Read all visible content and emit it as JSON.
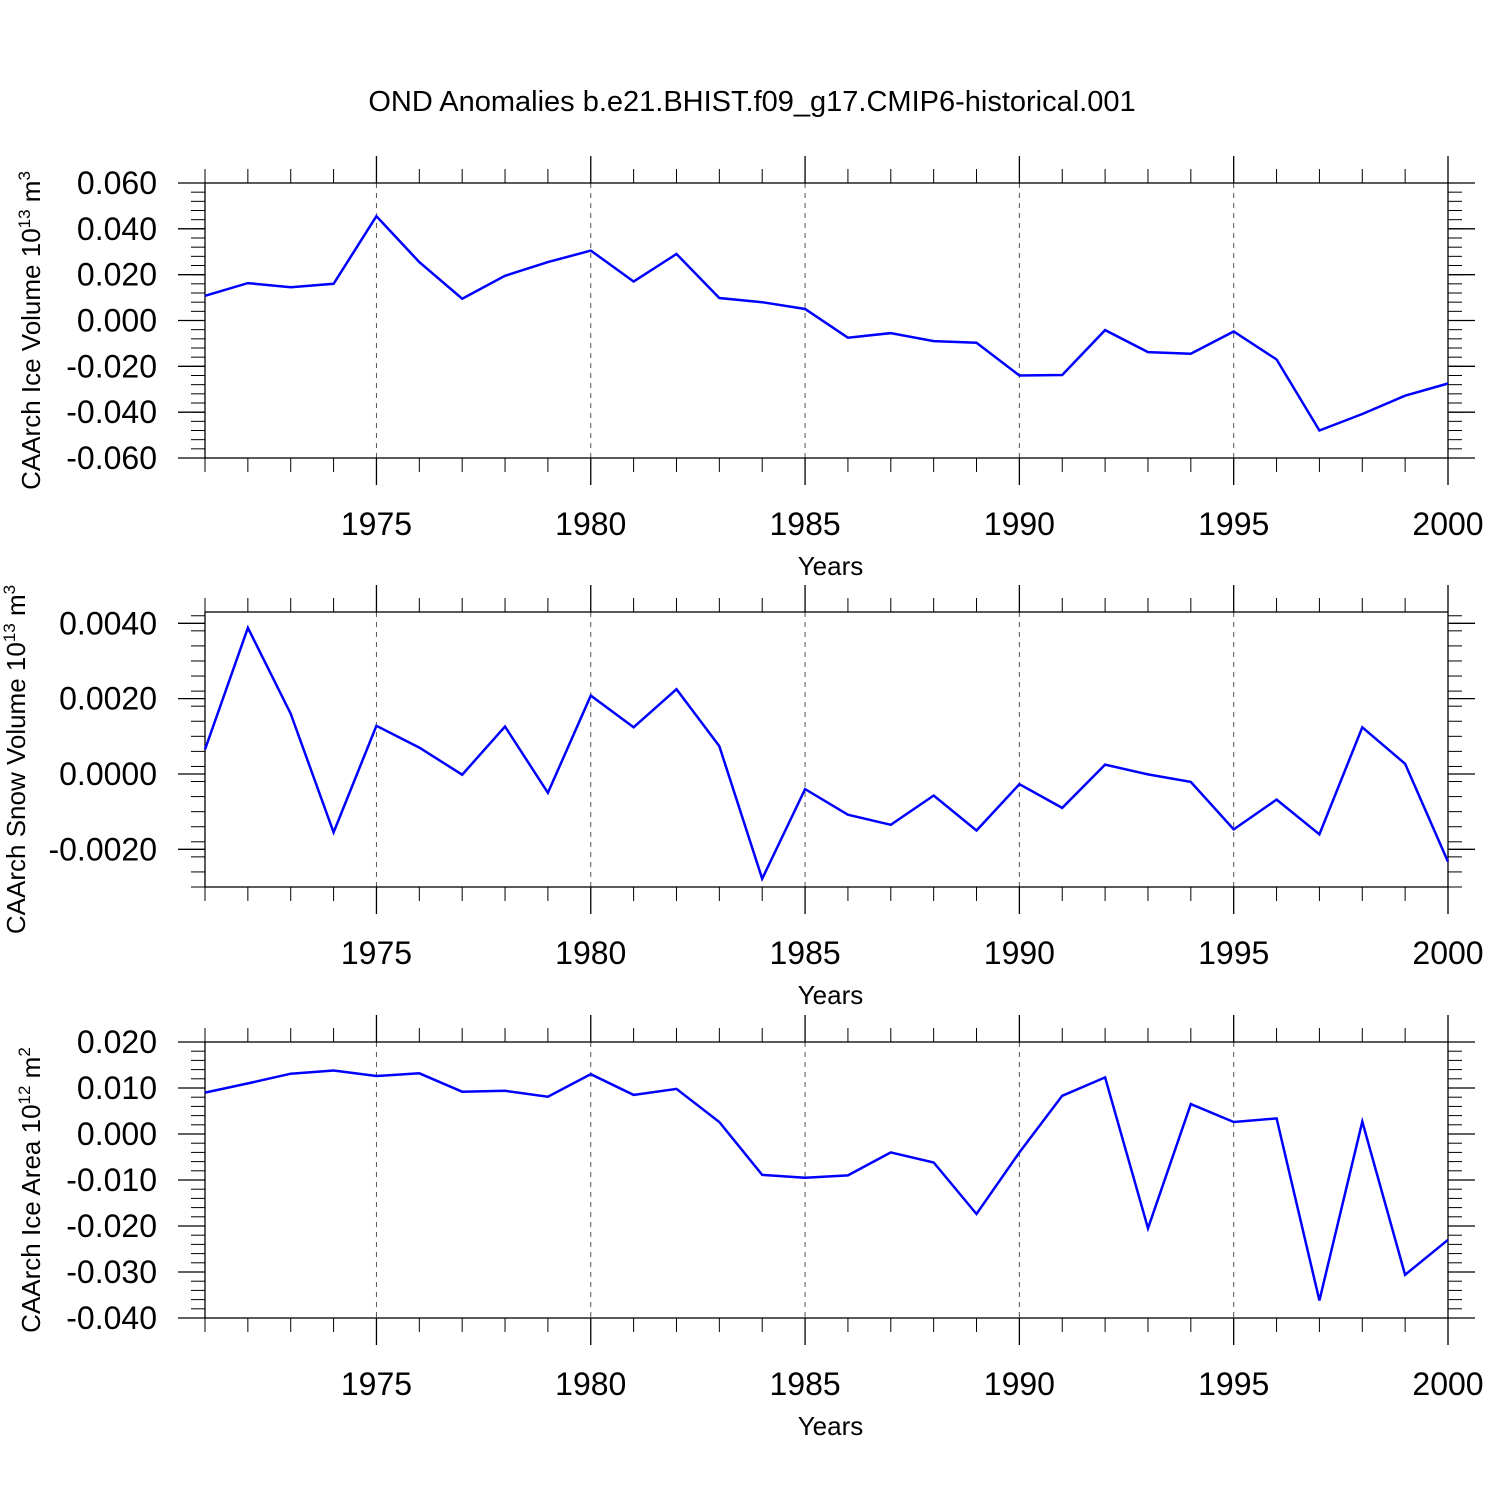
{
  "figure": {
    "title": "OND Anomalies b.e21.BHIST.f09_g17.CMIP6-historical.001",
    "line_color": "#0000ff"
  },
  "chart_data": [
    {
      "type": "line",
      "title": "",
      "ylabel": {
        "base": "CAArch Ice Volume 10",
        "exp": "13",
        "unit": " m",
        "unit_exp": "3"
      },
      "xlabel": "Years",
      "xlim": [
        1971,
        2000
      ],
      "ylim": [
        -0.06,
        0.06
      ],
      "x_ticks": [
        "1975",
        "1980",
        "1985",
        "1990",
        "1995",
        "2000"
      ],
      "y_ticks": [
        "0.060",
        "0.040",
        "0.020",
        "0.000",
        "-0.020",
        "-0.040",
        "-0.060"
      ],
      "grid": "dashed vertical at major x ticks",
      "x": [
        1971,
        1972,
        1973,
        1974,
        1975,
        1976,
        1977,
        1978,
        1979,
        1980,
        1981,
        1982,
        1983,
        1984,
        1985,
        1986,
        1987,
        1988,
        1989,
        1990,
        1991,
        1992,
        1993,
        1994,
        1995,
        1996,
        1997,
        1998,
        1999,
        2000
      ],
      "series": [
        {
          "values": [
            0.0108,
            0.0163,
            0.0145,
            0.016,
            0.0455,
            0.0255,
            0.0095,
            0.0195,
            0.0255,
            0.0305,
            0.017,
            0.029,
            0.0098,
            0.008,
            0.005,
            -0.0075,
            -0.0055,
            -0.009,
            -0.0097,
            -0.024,
            -0.0238,
            -0.0042,
            -0.0138,
            -0.0145,
            -0.0048,
            -0.017,
            -0.048,
            -0.0408,
            -0.0328,
            -0.0275
          ]
        }
      ]
    },
    {
      "type": "line",
      "title": "",
      "ylabel": {
        "base": "CAArch Snow Volume 10",
        "exp": "13",
        "unit": " m",
        "unit_exp": "3"
      },
      "xlabel": "Years",
      "xlim": [
        1971,
        2000
      ],
      "ylim": [
        -0.003,
        0.0043
      ],
      "x_ticks": [
        "1975",
        "1980",
        "1985",
        "1990",
        "1995",
        "2000"
      ],
      "y_ticks": [
        "0.0040",
        "0.0020",
        "0.0000",
        "-0.0020"
      ],
      "grid": "dashed vertical at major x ticks",
      "x": [
        1971,
        1972,
        1973,
        1974,
        1975,
        1976,
        1977,
        1978,
        1979,
        1980,
        1981,
        1982,
        1983,
        1984,
        1985,
        1986,
        1987,
        1988,
        1989,
        1990,
        1991,
        1992,
        1993,
        1994,
        1995,
        1996,
        1997,
        1998,
        1999,
        2000
      ],
      "series": [
        {
          "values": [
            0.00065,
            0.00388,
            0.0016,
            -0.00155,
            0.00128,
            0.0007,
            -2e-05,
            0.00126,
            -0.0005,
            0.00208,
            0.00124,
            0.00225,
            0.00074,
            -0.00278,
            -0.0004,
            -0.00108,
            -0.00135,
            -0.00057,
            -0.0015,
            -0.00027,
            -0.0009,
            0.00025,
            -1e-05,
            -0.00021,
            -0.00147,
            -0.00068,
            -0.0016,
            0.00124,
            0.00027,
            -0.00233
          ]
        }
      ]
    },
    {
      "type": "line",
      "title": "",
      "ylabel": {
        "base": "CAArch Ice Area 10",
        "exp": "12",
        "unit": " m",
        "unit_exp": "2"
      },
      "xlabel": "Years",
      "xlim": [
        1971,
        2000
      ],
      "ylim": [
        -0.04,
        0.02
      ],
      "x_ticks": [
        "1975",
        "1980",
        "1985",
        "1990",
        "1995",
        "2000"
      ],
      "y_ticks": [
        "0.020",
        "0.010",
        "0.000",
        "-0.010",
        "-0.020",
        "-0.030",
        "-0.040"
      ],
      "grid": "dashed vertical at major x ticks",
      "x": [
        1971,
        1972,
        1973,
        1974,
        1975,
        1976,
        1977,
        1978,
        1979,
        1980,
        1981,
        1982,
        1983,
        1984,
        1985,
        1986,
        1987,
        1988,
        1989,
        1990,
        1991,
        1992,
        1993,
        1994,
        1995,
        1996,
        1997,
        1998,
        1999,
        2000
      ],
      "series": [
        {
          "values": [
            0.009,
            0.011,
            0.0131,
            0.0138,
            0.0126,
            0.0132,
            0.0092,
            0.0094,
            0.0081,
            0.013,
            0.0085,
            0.0098,
            0.0026,
            -0.0089,
            -0.0095,
            -0.009,
            -0.004,
            -0.0062,
            -0.0174,
            -0.004,
            0.0083,
            0.0123,
            -0.0205,
            0.0065,
            0.0026,
            0.0034,
            -0.0362,
            0.0027,
            -0.0306,
            -0.023
          ]
        }
      ]
    }
  ]
}
